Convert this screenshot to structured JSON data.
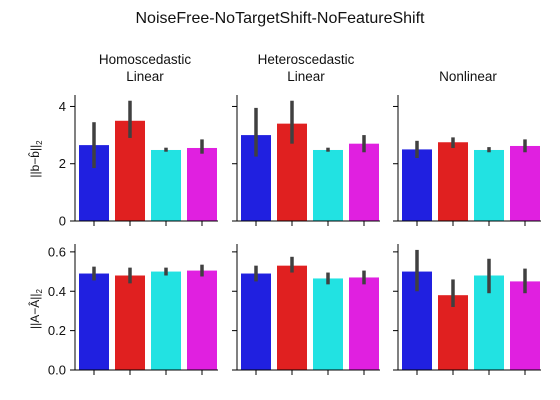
{
  "figure": {
    "title": "NoiseFree-NoTargetShift-NoFeatureShift",
    "columns": [
      {
        "line1": "Homoscedastic",
        "line2": "Linear"
      },
      {
        "line1": "Heteroscedastic",
        "line2": "Linear"
      },
      {
        "line1": "Nonlinear",
        "line2": ""
      }
    ],
    "rows": [
      {
        "ylabel_main": "||b−b̂||",
        "ylabel_sub": "2"
      },
      {
        "ylabel_main": "||A−Â||",
        "ylabel_sub": "2"
      }
    ],
    "bar_colors": [
      "#2020e0",
      "#e02020",
      "#22e2e2",
      "#e020e0"
    ],
    "errorbar_color": "#404040"
  },
  "chart_data": [
    {
      "type": "bar",
      "row": 0,
      "col": 0,
      "title": "Homoscedastic Linear",
      "ylabel": "||b−b̂||2",
      "ylim": [
        0,
        4.4
      ],
      "yticks": [
        0,
        2,
        4
      ],
      "values": [
        2.65,
        3.5,
        2.48,
        2.55
      ],
      "err_low": [
        1.85,
        2.9,
        2.42,
        2.35
      ],
      "err_high": [
        3.45,
        4.2,
        2.56,
        2.85
      ]
    },
    {
      "type": "bar",
      "row": 0,
      "col": 1,
      "title": "Heteroscedastic Linear",
      "ylim": [
        0,
        4.4
      ],
      "yticks": [
        0,
        2,
        4
      ],
      "values": [
        3.0,
        3.4,
        2.48,
        2.7
      ],
      "err_low": [
        2.25,
        2.7,
        2.42,
        2.4
      ],
      "err_high": [
        3.95,
        4.2,
        2.56,
        3.0
      ]
    },
    {
      "type": "bar",
      "row": 0,
      "col": 2,
      "title": "Nonlinear",
      "ylim": [
        0,
        4.4
      ],
      "yticks": [
        0,
        2,
        4
      ],
      "values": [
        2.5,
        2.75,
        2.48,
        2.62
      ],
      "err_low": [
        2.2,
        2.55,
        2.4,
        2.4
      ],
      "err_high": [
        2.8,
        2.92,
        2.58,
        2.85
      ]
    },
    {
      "type": "bar",
      "row": 1,
      "col": 0,
      "ylabel": "||A−Â||2",
      "ylim": [
        0,
        0.64
      ],
      "yticks": [
        0.0,
        0.2,
        0.4,
        0.6
      ],
      "values": [
        0.49,
        0.48,
        0.5,
        0.505
      ],
      "err_low": [
        0.455,
        0.44,
        0.48,
        0.475
      ],
      "err_high": [
        0.525,
        0.52,
        0.52,
        0.535
      ]
    },
    {
      "type": "bar",
      "row": 1,
      "col": 1,
      "ylim": [
        0,
        0.64
      ],
      "yticks": [
        0.0,
        0.2,
        0.4,
        0.6
      ],
      "values": [
        0.49,
        0.53,
        0.465,
        0.47
      ],
      "err_low": [
        0.45,
        0.495,
        0.435,
        0.435
      ],
      "err_high": [
        0.53,
        0.575,
        0.495,
        0.505
      ]
    },
    {
      "type": "bar",
      "row": 1,
      "col": 2,
      "ylim": [
        0,
        0.64
      ],
      "yticks": [
        0.0,
        0.2,
        0.4,
        0.6
      ],
      "values": [
        0.5,
        0.38,
        0.48,
        0.45
      ],
      "err_low": [
        0.4,
        0.32,
        0.39,
        0.39
      ],
      "err_high": [
        0.61,
        0.46,
        0.565,
        0.515
      ]
    }
  ]
}
